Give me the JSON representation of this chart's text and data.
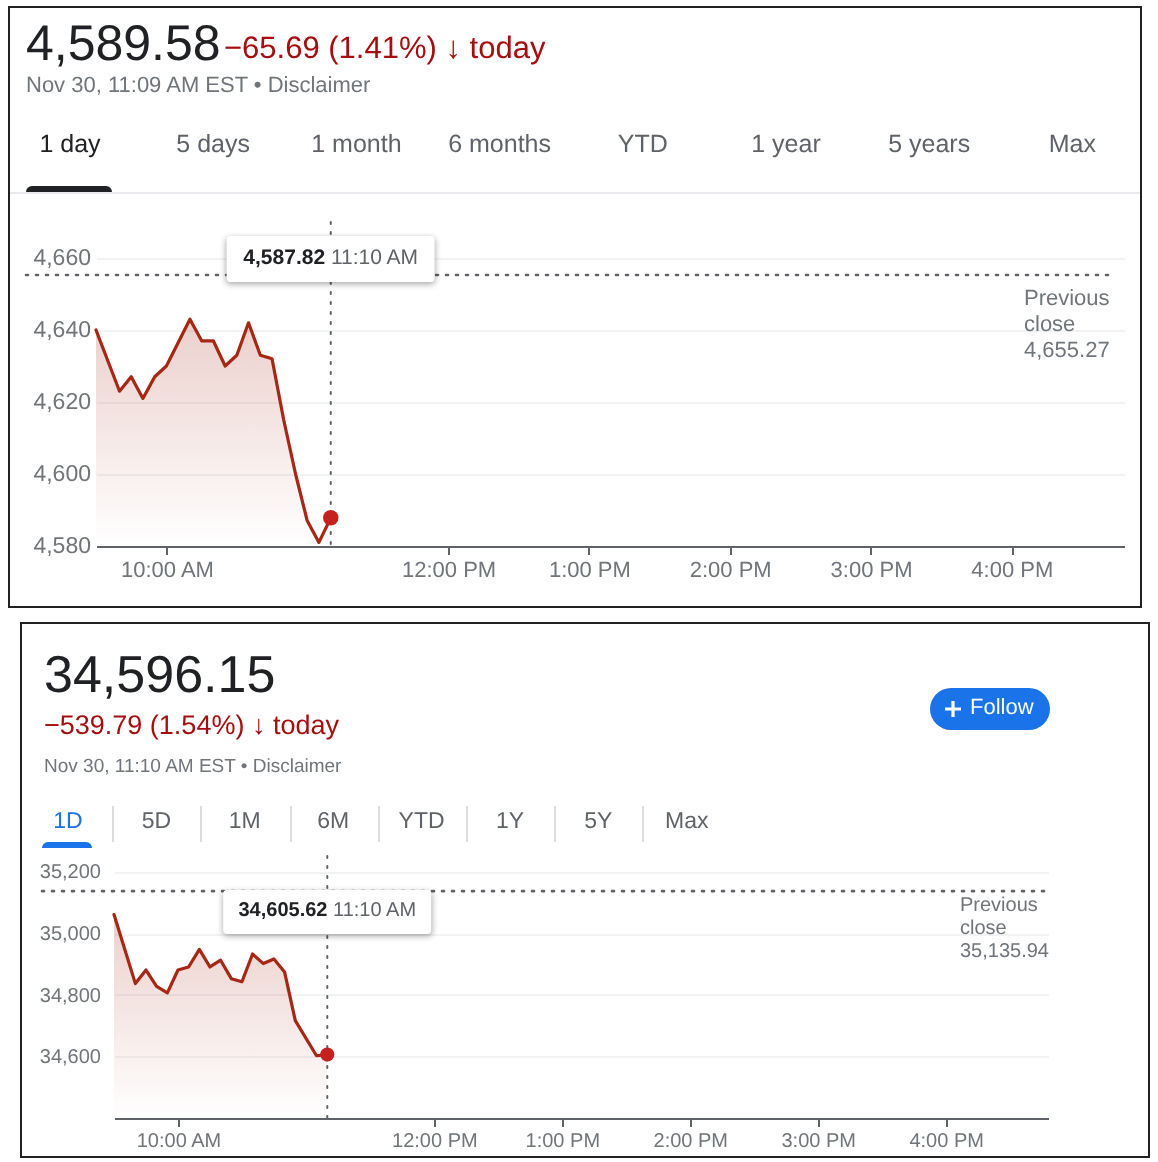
{
  "chart_data": [
    {
      "type": "area",
      "title": "4,589.58",
      "subtitle": "−65.69 (1.41%) ↓ today",
      "annotations": [
        "Nov 30, 11:09 AM EST • Disclaimer",
        "1 day",
        "5 days",
        "1 month",
        "6 months",
        "YTD",
        "1 year",
        "5 years",
        "Max"
      ],
      "x": [
        9.5,
        9.667,
        9.75,
        9.833,
        9.917,
        10,
        10.167,
        10.25,
        10.333,
        10.417,
        10.5,
        10.583,
        10.667,
        10.75,
        10.833,
        10.917,
        11,
        11.083,
        11.167
      ],
      "series": [
        {
          "color": "#a52714",
          "values": [
            4640,
            4623,
            4627,
            4621,
            4627,
            4630,
            4643,
            4637,
            4637,
            4630,
            4633,
            4642,
            4633,
            4632,
            4615,
            4600,
            4587,
            4581,
            4587.82
          ]
        }
      ],
      "xlim": [
        9.5,
        16.8
      ],
      "xticks": [
        {
          "value": 10,
          "label": "10:00 AM"
        },
        {
          "value": 12,
          "label": "12:00 PM"
        },
        {
          "value": 13,
          "label": "1:00 PM"
        },
        {
          "value": 14,
          "label": "2:00 PM"
        },
        {
          "value": 15,
          "label": "3:00 PM"
        },
        {
          "value": 16,
          "label": "4:00 PM"
        }
      ],
      "ylim": [
        4580,
        4670
      ],
      "yticks": [
        {
          "value": 4580,
          "label": "4,580"
        },
        {
          "value": 4600,
          "label": "4,600"
        },
        {
          "value": 4620,
          "label": "4,620"
        },
        {
          "value": 4640,
          "label": "4,640"
        },
        {
          "value": 4660,
          "label": "4,660"
        }
      ],
      "ref_lines": [
        {
          "axis": "y",
          "value": 4655.27,
          "label": "Previous close 4,655.27",
          "line_style": "dotted",
          "color": "#5f6368"
        },
        {
          "axis": "x",
          "value": 11.167,
          "label": "4,587.82 11:10 AM",
          "line_style": "dotted",
          "color": "#5f6368"
        }
      ],
      "grid": "y"
    },
    {
      "type": "area",
      "title": "34,596.15",
      "subtitle": "−539.79 (1.54%) ↓ today",
      "annotations": [
        "Nov 30, 11:10 AM EST • Disclaimer",
        "1D",
        "5D",
        "1M",
        "6M",
        "YTD",
        "1Y",
        "5Y",
        "Max",
        "Follow"
      ],
      "x": [
        9.5,
        9.667,
        9.75,
        9.833,
        9.917,
        10,
        10.083,
        10.167,
        10.25,
        10.333,
        10.417,
        10.5,
        10.583,
        10.667,
        10.75,
        10.833,
        10.917,
        11.083,
        11.167
      ],
      "series": [
        {
          "color": "#a52714",
          "values": [
            35060,
            34836,
            34880,
            34827,
            34806,
            34880,
            34890,
            34947,
            34890,
            34912,
            34852,
            34842,
            34932,
            34901,
            34916,
            34874,
            34716,
            34602,
            34605.62
          ]
        }
      ],
      "xlim": [
        9.5,
        16.8
      ],
      "xticks": [
        {
          "value": 10,
          "label": "10:00 AM"
        },
        {
          "value": 12,
          "label": "12:00 PM"
        },
        {
          "value": 13,
          "label": "1:00 PM"
        },
        {
          "value": 14,
          "label": "2:00 PM"
        },
        {
          "value": 15,
          "label": "3:00 PM"
        },
        {
          "value": 16,
          "label": "4:00 PM"
        }
      ],
      "ylim": [
        34400,
        35250
      ],
      "yticks": [
        {
          "value": 34600,
          "label": "34,600"
        },
        {
          "value": 34800,
          "label": "34,800"
        },
        {
          "value": 35000,
          "label": "35,000"
        },
        {
          "value": 35200,
          "label": "35,200"
        }
      ],
      "ref_lines": [
        {
          "axis": "y",
          "value": 35135.94,
          "label": "Previous close 35,135.94",
          "line_style": "dotted",
          "color": "#5f6368"
        },
        {
          "axis": "x",
          "value": 11.167,
          "label": "34,605.62 11:10 AM",
          "line_style": "dotted",
          "color": "#5f6368"
        }
      ],
      "grid": "y"
    }
  ]
}
